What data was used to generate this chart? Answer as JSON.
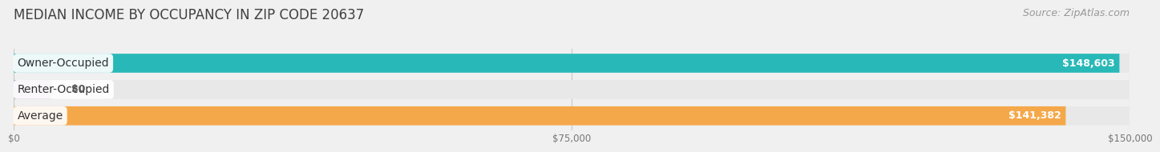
{
  "title": "MEDIAN INCOME BY OCCUPANCY IN ZIP CODE 20637",
  "source": "Source: ZipAtlas.com",
  "categories": [
    "Owner-Occupied",
    "Renter-Occupied",
    "Average"
  ],
  "values": [
    148603,
    0,
    141382
  ],
  "bar_colors": [
    "#29b8b8",
    "#b89ec8",
    "#f5a84a"
  ],
  "value_labels": [
    "$148,603",
    "$0",
    "$141,382"
  ],
  "bg_color": "#f0f0f0",
  "bar_bg_color": "#e2e2e2",
  "bar_row_bg": "#e8e8e8",
  "xlim": [
    0,
    150000
  ],
  "xticks": [
    0,
    75000,
    150000
  ],
  "xtick_labels": [
    "$0",
    "$75,000",
    "$150,000"
  ],
  "title_fontsize": 12,
  "source_fontsize": 9,
  "label_fontsize": 10,
  "value_fontsize": 9,
  "renter_value": 5000
}
